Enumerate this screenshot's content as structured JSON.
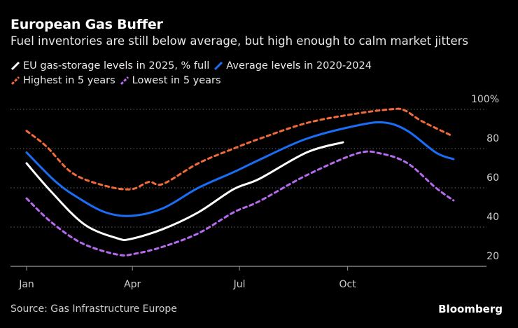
{
  "header": {
    "title": "European Gas Buffer",
    "subtitle": "Fuel inventories are still below average, but high enough to calm market jitters"
  },
  "footer": {
    "source": "Source: Gas Infrastructure Europe",
    "brand": "Bloomberg"
  },
  "chart_data": {
    "type": "line",
    "title": "European Gas Buffer",
    "subtitle": "Fuel inventories are still below average, but high enough to calm market jitters",
    "x_tick_labels": [
      "Jan",
      "Apr",
      "Jul",
      "Oct"
    ],
    "x_ticks": [
      "01-01",
      "04-01",
      "07-01",
      "10-01"
    ],
    "y_tick_labels": [
      "100%",
      "80",
      "60",
      "40",
      "20"
    ],
    "y_ticks": [
      100,
      80,
      60,
      40,
      20
    ],
    "ylim": [
      20,
      100
    ],
    "xlim": [
      "01-01",
      "12-31"
    ],
    "y_axis_side": "right",
    "grid": "horizontal dotted",
    "legend_placement": "top-left",
    "background": "#000000",
    "series": [
      {
        "name": "EU gas-storage levels in 2025, % full",
        "color": "#ffffff",
        "style": "solid",
        "x": [
          "01-01",
          "01-22",
          "02-19",
          "03-19",
          "03-31",
          "04-27",
          "05-27",
          "06-26",
          "07-18",
          "08-27",
          "09-27"
        ],
        "y": [
          72.5,
          58,
          41.4,
          34.3,
          34,
          39,
          47.5,
          59.3,
          64.6,
          78,
          83.2
        ]
      },
      {
        "name": "Average levels in 2020-2024",
        "color": "#1a6ef5",
        "style": "solid",
        "x": [
          "01-01",
          "01-26",
          "02-15",
          "03-09",
          "03-31",
          "04-27",
          "05-27",
          "06-26",
          "07-18",
          "08-27",
          "10-11",
          "11-02",
          "11-21",
          "12-15",
          "12-30"
        ],
        "y": [
          78,
          63,
          54.5,
          47.5,
          45.7,
          49.6,
          60,
          68,
          74.3,
          85,
          92,
          93.2,
          89,
          78,
          74.6
        ]
      },
      {
        "name": "Highest in 5 years",
        "color": "#f26a3a",
        "style": "dashed",
        "x": [
          "01-01",
          "01-18",
          "02-09",
          "03-09",
          "03-31",
          "04-15",
          "04-27",
          "05-27",
          "06-26",
          "07-18",
          "08-27",
          "10-05",
          "11-06",
          "11-18",
          "12-03",
          "12-27"
        ],
        "y": [
          89,
          81,
          67.5,
          61,
          59.3,
          63,
          62,
          72.5,
          80,
          85,
          93,
          97.5,
          100,
          99.6,
          94,
          87
        ]
      },
      {
        "name": "Lowest in 5 years",
        "color": "#b76af0",
        "style": "dashed",
        "x": [
          "01-01",
          "01-22",
          "02-17",
          "03-19",
          "04-03",
          "04-27",
          "05-27",
          "06-26",
          "07-18",
          "08-27",
          "10-09",
          "10-29",
          "11-21",
          "12-15",
          "12-30"
        ],
        "y": [
          54.6,
          42.5,
          31.8,
          26,
          26.4,
          30,
          36.8,
          47.5,
          53.2,
          66.4,
          77.5,
          77.5,
          72.5,
          60,
          53.6
        ]
      }
    ]
  }
}
